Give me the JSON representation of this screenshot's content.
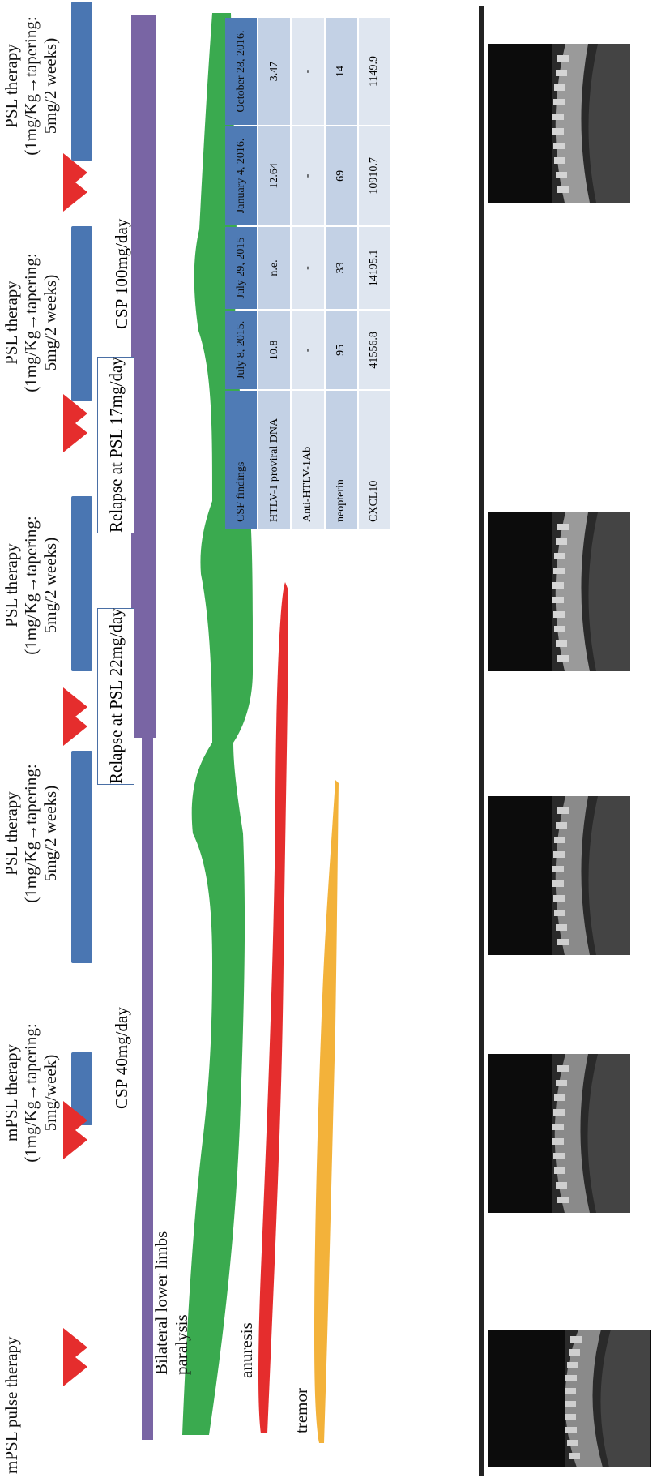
{
  "row_labels": {
    "pulse": "mPSL pulse therapy",
    "bilateral": "Bilateral lower limbs",
    "paralysis": "paralysis",
    "anuresis": "anuresis",
    "tremor": "tremor"
  },
  "therapies": [
    {
      "line1": "mPSL therapy",
      "line2": "(1mg/Kg→tapering:",
      "line3": "5mg/week)"
    },
    {
      "line1": "PSL therapy",
      "line2": "(1mg/Kg→tapering:",
      "line3": "5mg/2 weeks)"
    },
    {
      "line1": "PSL therapy",
      "line2": "(1mg/Kg→tapering:",
      "line3": "5mg/2 weeks)"
    },
    {
      "line1": "PSL therapy",
      "line2": "(1mg/Kg→tapering:",
      "line3": "5mg/2 weeks)"
    },
    {
      "line1": "PSL therapy",
      "line2": "(1mg/Kg→tapering:",
      "line3": "5mg/2 weeks)"
    }
  ],
  "csp": {
    "first": "CSP 40mg/day",
    "second": "CSP 100mg/day"
  },
  "relapses": [
    "Relapse at PSL 22mg/day",
    "Relapse at PSL 17mg/day"
  ],
  "table": {
    "headers": [
      "CSF findings",
      "July 8, 2015.",
      "July 29, 2015",
      "January 4, 2016.",
      "October 28, 2016."
    ],
    "rows": [
      [
        "HTLV-1 proviral DNA",
        "10.8",
        "n.e.",
        "12.64",
        "3.47"
      ],
      [
        "Anti-HTLV-1Ab",
        "-",
        "-",
        "-",
        "-"
      ],
      [
        "neopterin",
        "95",
        "33",
        "69",
        "14"
      ],
      [
        "CXCL10",
        "41556.8",
        "14195.1",
        "10910.7",
        "1149.9"
      ]
    ]
  },
  "colors": {
    "triangle": "#e52d2d",
    "therapy_bar": "#4a76b2",
    "csp_bar": "#7965a4",
    "paralysis": "#3aaa4f",
    "anuresis": "#e52d2d",
    "tremor": "#f3b23a",
    "table_header": "#4f7bb5"
  },
  "icons": [
    "pulse-triangle-icon",
    "mri-image"
  ]
}
